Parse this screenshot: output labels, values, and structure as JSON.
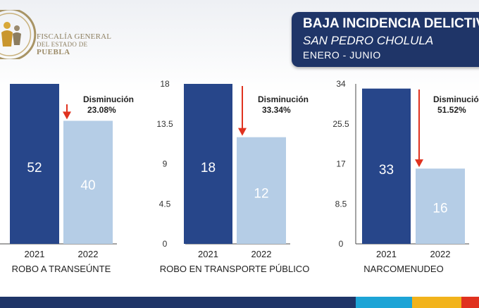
{
  "organization": {
    "line1": "FISCALÍA GENERAL",
    "line2": "DEL ESTADO DE",
    "line3": "PUEBLA"
  },
  "banner": {
    "title": "BAJA INCIDENCIA DELICTIVA",
    "subtitle": "SAN PEDRO CHOLULA",
    "period": "ENERO - JUNIO"
  },
  "colors": {
    "bar2021": "#27468a",
    "bar2022": "#b5cde6",
    "arrow": "#e0321f",
    "banner": "#1f3568"
  },
  "chart_data": [
    {
      "type": "bar",
      "title": "ROBO A TRANSEÚNTE",
      "categories": [
        "2021",
        "2022"
      ],
      "values": [
        52,
        40
      ],
      "note_label": "Disminución",
      "note_value": "23.08%",
      "ylim": [
        0,
        52
      ]
    },
    {
      "type": "bar",
      "title": "ROBO EN TRANSPORTE PÚBLICO",
      "categories": [
        "2021",
        "2022"
      ],
      "values": [
        18,
        12
      ],
      "note_label": "Disminución",
      "note_value": "33.34%",
      "ylim": [
        0,
        18
      ],
      "yticks": [
        "0",
        "4.5",
        "9",
        "13.5",
        "18"
      ]
    },
    {
      "type": "bar",
      "title": "NARCOMENUDEO",
      "categories": [
        "2021",
        "2022"
      ],
      "values": [
        33,
        16
      ],
      "note_label": "Disminución",
      "note_value": "51.52%",
      "ylim": [
        0,
        34
      ],
      "yticks": [
        "0",
        "8.5",
        "17",
        "25.5",
        "34"
      ]
    }
  ]
}
